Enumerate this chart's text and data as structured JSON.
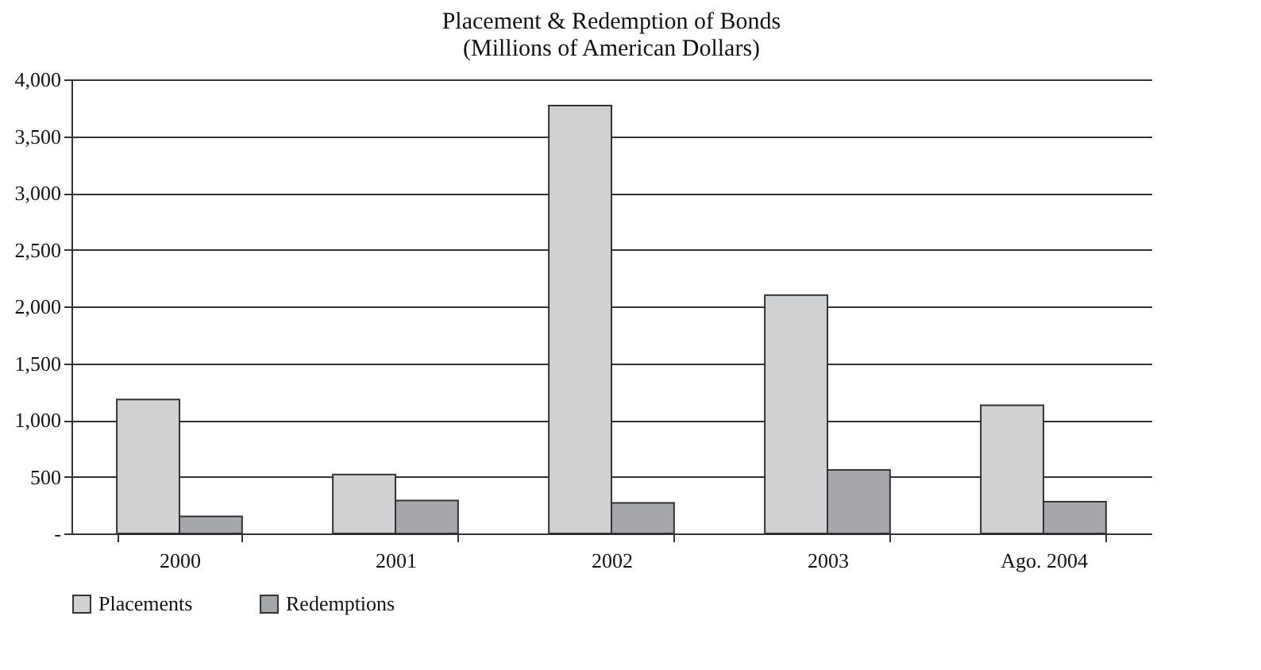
{
  "chart_data": {
    "type": "bar",
    "title": [
      "Placement & Redemption of Bonds",
      "(Millions of American Dollars)"
    ],
    "categories": [
      "2000",
      "2001",
      "2002",
      "2003",
      "Ago. 2004"
    ],
    "series": [
      {
        "name": "Placements",
        "color": "#d0d1d3",
        "values": [
          1180,
          520,
          3770,
          2100,
          1130
        ]
      },
      {
        "name": "Redemptions",
        "color": "#a6a7aa",
        "values": [
          150,
          290,
          270,
          560,
          280
        ]
      }
    ],
    "ylim": [
      0,
      4000
    ],
    "yticks": [
      {
        "value": 0,
        "label": "-"
      },
      500,
      {
        "value": 1000,
        "label": "1,000"
      },
      {
        "value": 1500,
        "label": "1,500"
      },
      {
        "value": 2000,
        "label": "2,000"
      },
      {
        "value": 2500,
        "label": "2,500"
      },
      {
        "value": 3000,
        "label": "3,000"
      },
      {
        "value": 3500,
        "label": "3,500"
      },
      {
        "value": 4000,
        "label": "4,000"
      }
    ],
    "grid": "y",
    "legend": "bottom"
  }
}
